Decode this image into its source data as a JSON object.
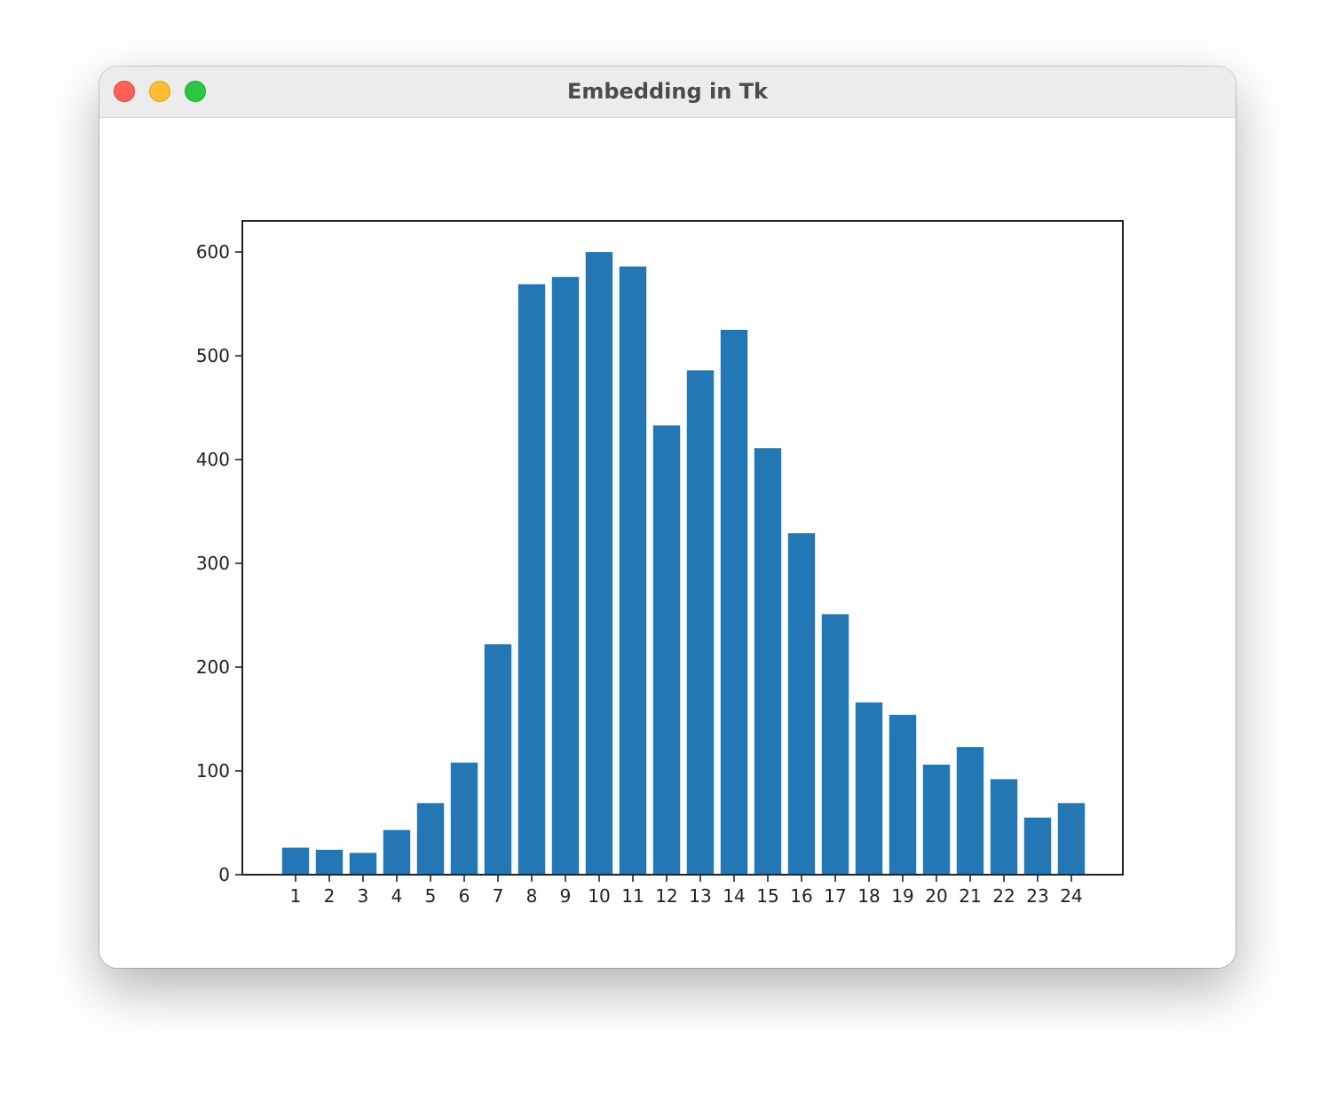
{
  "window": {
    "title": "Embedding in Tk"
  },
  "colors": {
    "bar": "#2377b4",
    "axis": "#222222",
    "titlebar": "#ececec"
  },
  "chart_data": {
    "type": "bar",
    "categories": [
      "1",
      "2",
      "3",
      "4",
      "5",
      "6",
      "7",
      "8",
      "9",
      "10",
      "11",
      "12",
      "13",
      "14",
      "15",
      "16",
      "17",
      "18",
      "19",
      "20",
      "21",
      "22",
      "23",
      "24"
    ],
    "values": [
      26,
      24,
      21,
      43,
      69,
      108,
      222,
      569,
      576,
      600,
      586,
      433,
      486,
      525,
      411,
      329,
      251,
      166,
      154,
      106,
      123,
      92,
      55,
      69
    ],
    "yticks": [
      0,
      100,
      200,
      300,
      400,
      500,
      600
    ],
    "ylim": [
      0,
      630
    ],
    "xlabel": "",
    "ylabel": "",
    "title": "",
    "grid": false
  }
}
